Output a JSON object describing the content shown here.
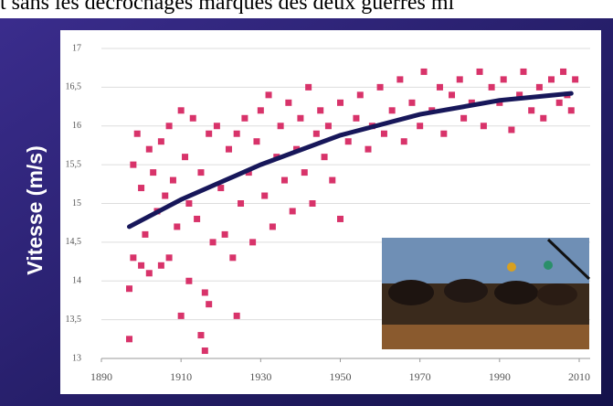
{
  "caption": "t sans les décrochages marqués des deux guerres mi",
  "chart_data": {
    "type": "scatter",
    "y_label": "Vitesse (m/s)",
    "xlim": [
      1890,
      2010
    ],
    "xticks": [
      1890,
      1910,
      1930,
      1950,
      1970,
      1990,
      2010
    ],
    "ylim": [
      13,
      17
    ],
    "yticks": [
      13,
      {
        "value": 13.5,
        "label": "13,5"
      },
      14,
      {
        "value": 14.5,
        "label": "14,5"
      },
      15,
      {
        "value": 15.5,
        "label": "15,5"
      },
      16,
      {
        "value": 16.5,
        "label": "16,5"
      },
      17
    ],
    "grid": true,
    "series": [
      {
        "color": "#d8336a",
        "x": [
          1897,
          1897,
          1898,
          1898,
          1899,
          1900,
          1900,
          1901,
          1902,
          1902,
          1903,
          1904,
          1905,
          1905,
          1906,
          1907,
          1907,
          1908,
          1909,
          1910,
          1910,
          1911,
          1912,
          1912,
          1913,
          1914,
          1915,
          1915,
          1916,
          1916,
          1917,
          1917,
          1918,
          1919,
          1920,
          1921,
          1922,
          1923,
          1924,
          1924,
          1925,
          1926,
          1927,
          1928,
          1929,
          1930,
          1931,
          1932,
          1933,
          1934,
          1935,
          1936,
          1937,
          1938,
          1939,
          1940,
          1941,
          1942,
          1943,
          1944,
          1945,
          1946,
          1947,
          1948,
          1950,
          1950,
          1952,
          1954,
          1955,
          1957,
          1958,
          1960,
          1961,
          1963,
          1965,
          1966,
          1968,
          1970,
          1971,
          1973,
          1975,
          1976,
          1978,
          1980,
          1981,
          1983,
          1985,
          1986,
          1988,
          1990,
          1991,
          1993,
          1995,
          1996,
          1998,
          2000,
          2001,
          2003,
          2005,
          2006,
          2007,
          2008,
          2009
        ],
        "values": [
          13.25,
          13.9,
          14.3,
          15.5,
          15.9,
          14.2,
          15.2,
          14.6,
          15.7,
          14.1,
          15.4,
          14.9,
          14.2,
          15.8,
          15.1,
          14.3,
          16.0,
          15.3,
          14.7,
          16.2,
          13.55,
          15.6,
          14.0,
          15.0,
          16.1,
          14.8,
          13.3,
          15.4,
          13.1,
          13.85,
          13.7,
          15.9,
          14.5,
          16.0,
          15.2,
          14.6,
          15.7,
          14.3,
          13.55,
          15.9,
          15.0,
          16.1,
          15.4,
          14.5,
          15.8,
          16.2,
          15.1,
          16.4,
          14.7,
          15.6,
          16.0,
          15.3,
          16.3,
          14.9,
          15.7,
          16.1,
          15.4,
          16.5,
          15.0,
          15.9,
          16.2,
          15.6,
          16.0,
          15.3,
          14.8,
          16.3,
          15.8,
          16.1,
          16.4,
          15.7,
          16.0,
          16.5,
          15.9,
          16.2,
          16.6,
          15.8,
          16.3,
          16.0,
          16.7,
          16.2,
          16.5,
          15.9,
          16.4,
          16.6,
          16.1,
          16.3,
          16.7,
          16.0,
          16.5,
          16.3,
          16.6,
          15.95,
          16.4,
          16.7,
          16.2,
          16.5,
          16.1,
          16.6,
          16.3,
          16.7,
          16.4,
          16.2,
          16.6
        ]
      },
      {
        "type": "line",
        "color": "#17175a",
        "x": [
          1897,
          1910,
          1930,
          1950,
          1970,
          1990,
          2008
        ],
        "values": [
          14.7,
          15.05,
          15.5,
          15.88,
          16.15,
          16.33,
          16.42
        ]
      }
    ]
  }
}
